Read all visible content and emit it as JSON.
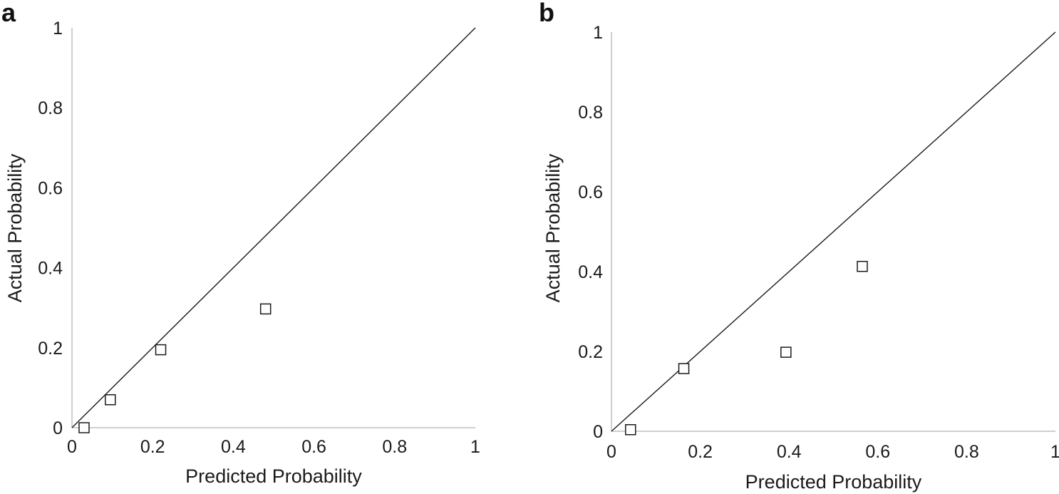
{
  "chart_data": [
    {
      "panel_label": "a",
      "type": "scatter",
      "xlabel": "Predicted Probability",
      "ylabel": "Actual Probability",
      "xlim": [
        0,
        1
      ],
      "ylim": [
        0,
        1
      ],
      "x_ticks": [
        "0",
        "0.2",
        "0.4",
        "0.6",
        "0.8",
        "1"
      ],
      "y_ticks": [
        "0",
        "0.2",
        "0.4",
        "0.6",
        "0.8",
        "1"
      ],
      "grid": false,
      "reference_line": "diagonal y = x",
      "marker": "open-square",
      "points": [
        {
          "x": 0.03,
          "y": 0.0
        },
        {
          "x": 0.095,
          "y": 0.07
        },
        {
          "x": 0.22,
          "y": 0.195
        },
        {
          "x": 0.48,
          "y": 0.297
        }
      ]
    },
    {
      "panel_label": "b",
      "type": "scatter",
      "xlabel": "Predicted Probability",
      "ylabel": "Actual Probability",
      "xlim": [
        0,
        1
      ],
      "ylim": [
        0,
        1
      ],
      "x_ticks": [
        "0",
        "0.2",
        "0.4",
        "0.6",
        "0.8",
        "1"
      ],
      "y_ticks": [
        "0",
        "0.2",
        "0.4",
        "0.6",
        "0.8",
        "1"
      ],
      "grid": false,
      "reference_line": "diagonal y = x",
      "marker": "open-square",
      "points": [
        {
          "x": 0.043,
          "y": 0.004
        },
        {
          "x": 0.163,
          "y": 0.157
        },
        {
          "x": 0.393,
          "y": 0.198
        },
        {
          "x": 0.565,
          "y": 0.413
        }
      ]
    }
  ],
  "colors": {
    "axis": "#bfbfbf",
    "line": "#1a1a1a",
    "marker_stroke": "#1a1a1a",
    "text": "#1a1a1a"
  }
}
